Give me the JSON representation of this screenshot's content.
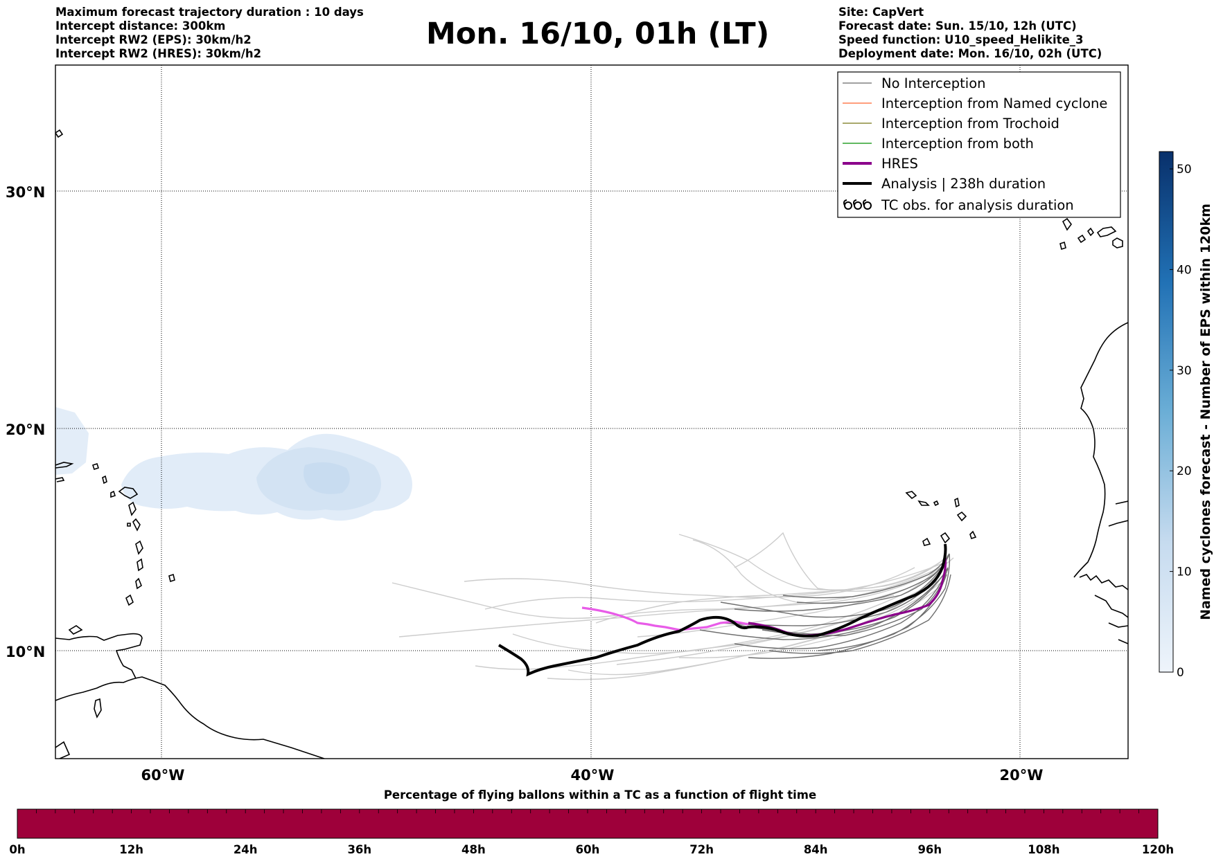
{
  "header": {
    "left_lines": [
      "Maximum forecast trajectory duration : 10 days",
      "Intercept distance: 300km",
      "Intercept RW2 (EPS):  30km/h2",
      "Intercept RW2 (HRES): 30km/h2"
    ],
    "title": "Mon. 16/10, 01h (LT)",
    "right_lines": [
      "Site: CapVert",
      "Forecast date: Sun. 15/10, 12h (UTC)",
      "Speed function: U10_speed_Helikite_3",
      "Deployment date: Mon. 16/10, 02h (UTC)"
    ]
  },
  "map": {
    "lat_labels": [
      "30°N",
      "20°N",
      "10°N"
    ],
    "lon_labels": [
      "60°W",
      "40°W",
      "20°W"
    ],
    "legend": [
      {
        "label": "No Interception",
        "color": "#808080",
        "symbol": "line-thin"
      },
      {
        "label": "Interception from Named cyclone",
        "color": "#ff7f50",
        "symbol": "line-thin"
      },
      {
        "label": "Interception from Trochoid",
        "color": "#8b8b3a",
        "symbol": "line-thin"
      },
      {
        "label": "Interception from both",
        "color": "#2ca02c",
        "symbol": "line-thin"
      },
      {
        "label": "HRES",
        "color": "#8b008b",
        "symbol": "line-thick"
      },
      {
        "label": "Analysis | 238h duration",
        "color": "#000000",
        "symbol": "line-thick"
      },
      {
        "label": "TC obs. for analysis duration",
        "color": "#000000",
        "symbol": "tc-icon"
      }
    ]
  },
  "colorbar": {
    "title": "Named cyclones forecast - Number of EPS within 120km",
    "ticks": [
      "0",
      "10",
      "20",
      "30",
      "40",
      "50"
    ],
    "color_low": "#e8f0fa",
    "color_high": "#08306b"
  },
  "bottom_bar": {
    "title": "Percentage of flying ballons within a TC as a function of flight time",
    "ticks": [
      "0h",
      "12h",
      "24h",
      "36h",
      "48h",
      "60h",
      "72h",
      "84h",
      "96h",
      "108h",
      "120h"
    ],
    "fill_color": "#9e003a"
  }
}
